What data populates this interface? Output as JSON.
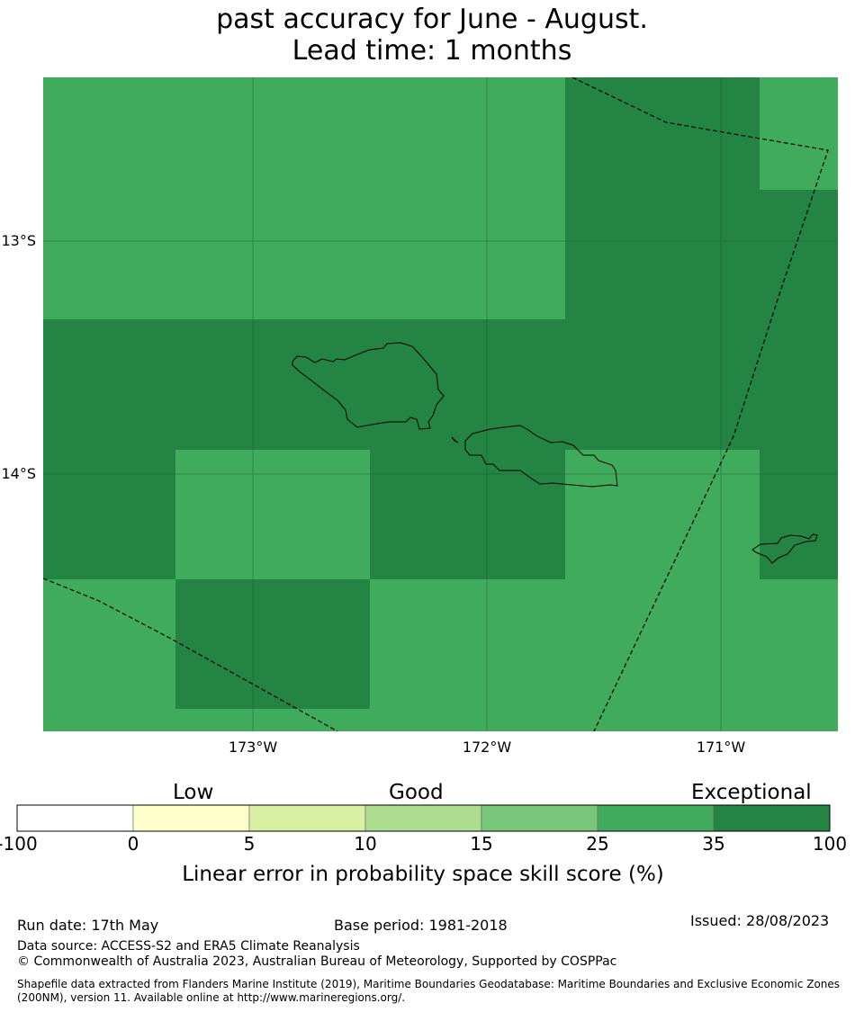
{
  "title": {
    "line1": "past accuracy for June - August.",
    "line2": "Lead time: 1 months"
  },
  "map": {
    "lat_labels": [
      "13°S",
      "14°S"
    ],
    "lon_labels": [
      "173°W",
      "172°W",
      "171°W"
    ],
    "skill_classes": [
      {
        "level": "35-100",
        "color": "#238443"
      },
      {
        "level": "25-35",
        "color": "#41ab5d"
      }
    ]
  },
  "colorbar": {
    "category_labels": [
      "Low",
      "Good",
      "Exceptional"
    ],
    "ticks": [
      "-100",
      "0",
      "5",
      "10",
      "15",
      "25",
      "35",
      "100"
    ],
    "colors": [
      "#ffffff",
      "#ffffcc",
      "#d9f0a3",
      "#addd8e",
      "#78c679",
      "#41ab5d",
      "#238443"
    ],
    "title": "Linear error in probability space skill score (%)"
  },
  "footer": {
    "run_date": "Run date: 17th May",
    "base_period": "Base period: 1981-2018",
    "issued": "Issued: 28/08/2023",
    "data_source": "Data source: ACCESS-S2 and ERA5 Climate Reanalysis",
    "copyright": "© Commonwealth of Australia 2023, Australian Bureau of Meteorology, Supported by COSPPac",
    "shapefile_note": "Shapefile data extracted from Flanders Marine Institute (2019), Maritime Boundaries Geodatabase: Maritime Boundaries and Exclusive Economic Zones (200NM), version 11. Available online at http://www.marineregions.org/."
  }
}
